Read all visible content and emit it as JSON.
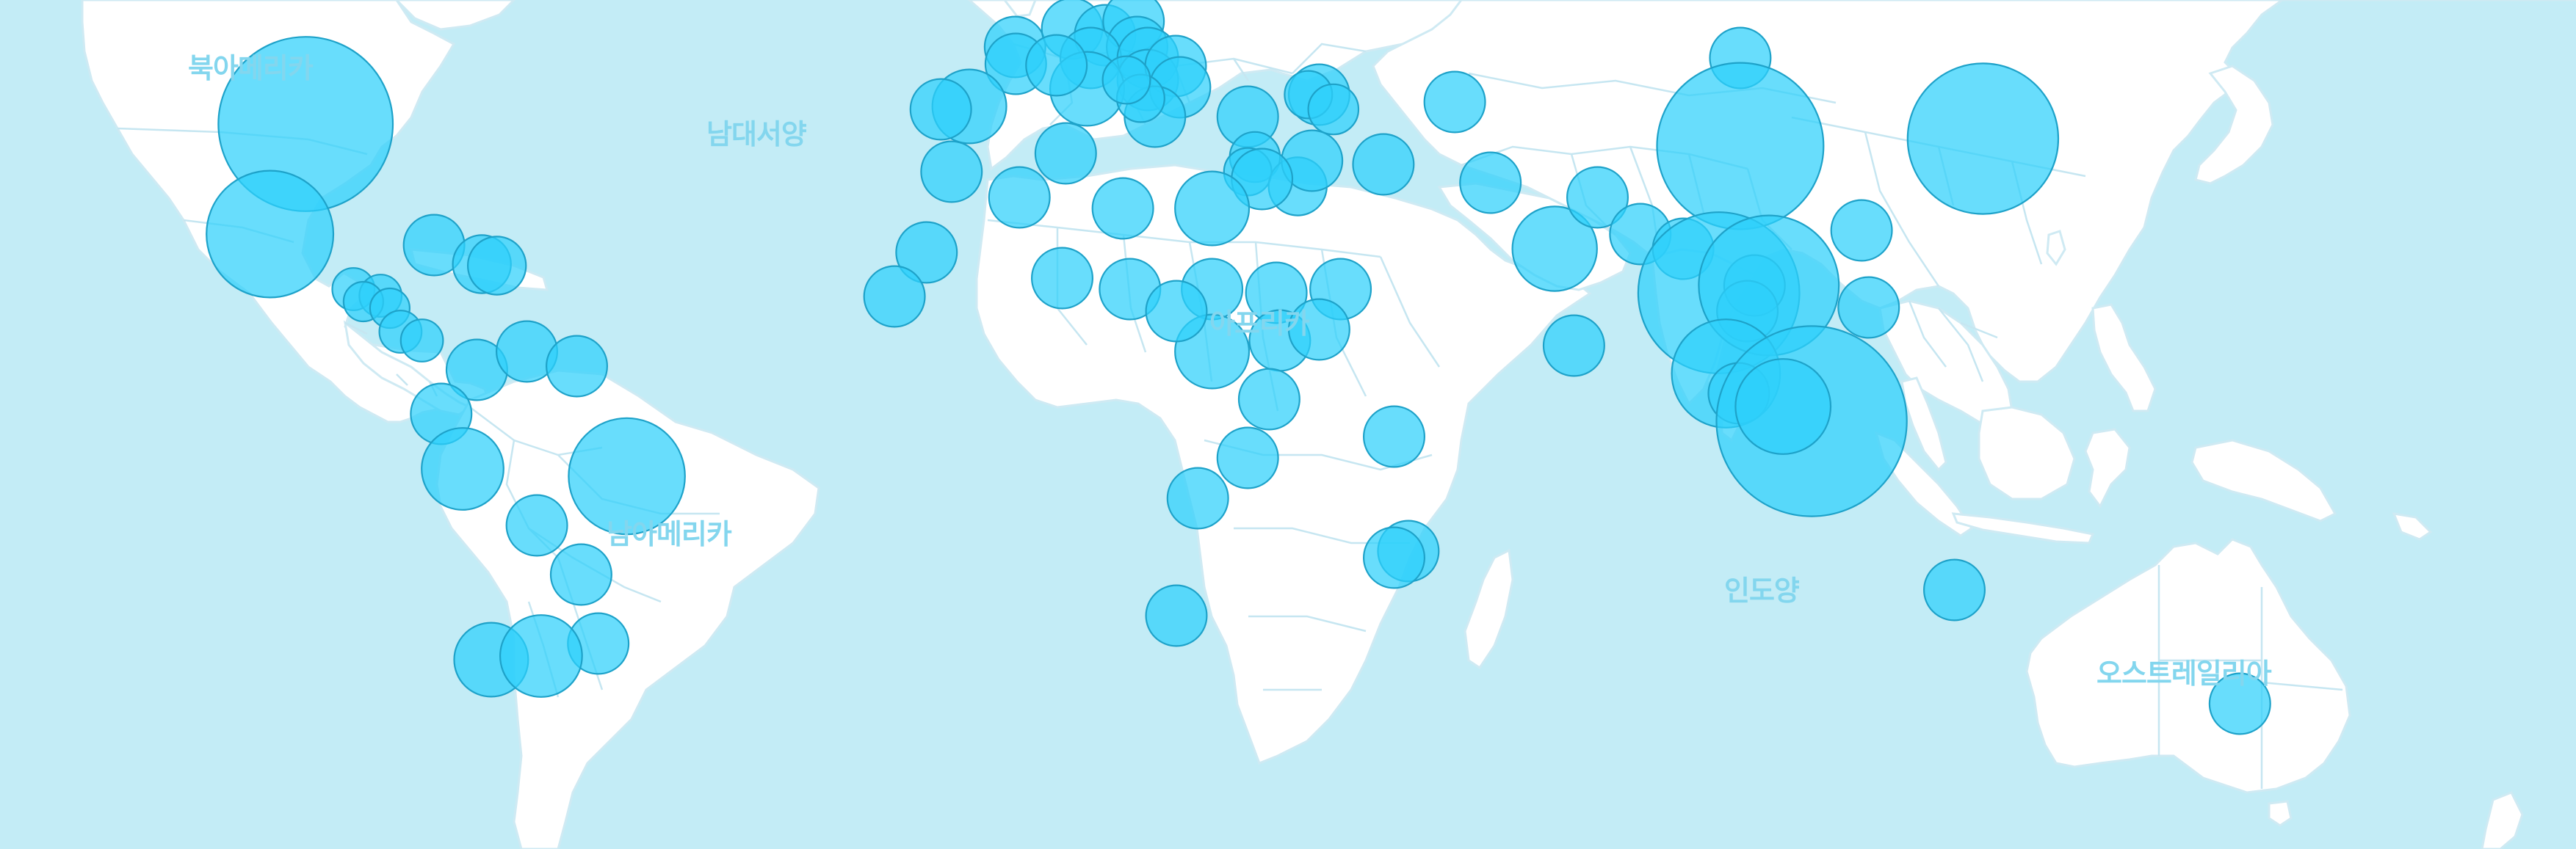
{
  "map": {
    "colors": {
      "ocean": "#c3ecf6",
      "land": "#ffffff",
      "border": "#c6e6f1",
      "bubble_fill": "#2ed0fb",
      "bubble_stroke": "#1ea2c9",
      "label": "#83d6ee"
    },
    "bubble_opacity": 0.72,
    "labels": {
      "north_america": "북아메리카",
      "north_atlantic": "남대서양",
      "africa": "아프리카",
      "south_america": "남아메리카",
      "indian_ocean": "인도양",
      "australia": "오스트레일리아"
    },
    "markers": [
      {
        "lat": 38.0,
        "lon": -97.0,
        "size": 6.6
      },
      {
        "lat": 23.0,
        "lon": -102.0,
        "size": 4.8
      },
      {
        "lat": 15.5,
        "lon": -90.3,
        "size": 1.6
      },
      {
        "lat": 14.6,
        "lon": -86.5,
        "size": 1.6
      },
      {
        "lat": 13.8,
        "lon": -88.9,
        "size": 1.5
      },
      {
        "lat": 12.9,
        "lon": -85.2,
        "size": 1.5
      },
      {
        "lat": 9.7,
        "lon": -83.7,
        "size": 1.6
      },
      {
        "lat": 8.5,
        "lon": -80.7,
        "size": 1.6
      },
      {
        "lat": 21.5,
        "lon": -79.0,
        "size": 2.3
      },
      {
        "lat": 18.9,
        "lon": -72.3,
        "size": 2.2
      },
      {
        "lat": 18.7,
        "lon": -70.2,
        "size": 2.2
      },
      {
        "lat": 4.5,
        "lon": -73.0,
        "size": 2.3
      },
      {
        "lat": 7.0,
        "lon": -66.0,
        "size": 2.3
      },
      {
        "lat": 5.0,
        "lon": -59.0,
        "size": 2.3
      },
      {
        "lat": -1.5,
        "lon": -78.0,
        "size": 2.3
      },
      {
        "lat": -9.0,
        "lon": -75.0,
        "size": 3.1
      },
      {
        "lat": -10.0,
        "lon": -52.0,
        "size": 4.4
      },
      {
        "lat": -16.7,
        "lon": -64.6,
        "size": 2.3
      },
      {
        "lat": -23.4,
        "lon": -58.4,
        "size": 2.3
      },
      {
        "lat": -32.8,
        "lon": -56.0,
        "size": 2.3
      },
      {
        "lat": -35.0,
        "lon": -71.0,
        "size": 2.8
      },
      {
        "lat": -34.5,
        "lon": -64.0,
        "size": 3.1
      },
      {
        "lat": 48.5,
        "lon": 2.4,
        "size": 2.3
      },
      {
        "lat": 46.2,
        "lon": 2.5,
        "size": 2.3
      },
      {
        "lat": 51.0,
        "lon": 10.4,
        "size": 2.3
      },
      {
        "lat": 50.1,
        "lon": 15.0,
        "size": 2.3
      },
      {
        "lat": 52.0,
        "lon": 19.0,
        "size": 2.3
      },
      {
        "lat": 48.5,
        "lon": 19.5,
        "size": 2.3
      },
      {
        "lat": 47.0,
        "lon": 13.0,
        "size": 2.3
      },
      {
        "lat": 47.0,
        "lon": 21.0,
        "size": 2.3
      },
      {
        "lat": 44.0,
        "lon": 21.0,
        "size": 2.3
      },
      {
        "lat": 45.9,
        "lon": 24.9,
        "size": 2.3
      },
      {
        "lat": 43.0,
        "lon": 25.5,
        "size": 2.3
      },
      {
        "lat": 40.4,
        "lon": -4.0,
        "size": 2.8
      },
      {
        "lat": 40.0,
        "lon": -8.0,
        "size": 2.3
      },
      {
        "lat": 42.8,
        "lon": 12.5,
        "size": 2.8
      },
      {
        "lat": 46.0,
        "lon": 8.2,
        "size": 2.3
      },
      {
        "lat": 39.0,
        "lon": 22.0,
        "size": 2.3
      },
      {
        "lat": 41.5,
        "lon": 20.0,
        "size": 1.8
      },
      {
        "lat": 44.0,
        "lon": 18.0,
        "size": 1.8
      },
      {
        "lat": 39.0,
        "lon": 35.0,
        "size": 2.3
      },
      {
        "lat": 42.0,
        "lon": 45.0,
        "size": 2.3
      },
      {
        "lat": 42.0,
        "lon": 43.5,
        "size": 1.8
      },
      {
        "lat": 40.0,
        "lon": 47.0,
        "size": 1.9
      },
      {
        "lat": 32.5,
        "lon": 54.0,
        "size": 2.3
      },
      {
        "lat": 30.0,
        "lon": 69.0,
        "size": 2.3
      },
      {
        "lat": 41.0,
        "lon": 64.0,
        "size": 2.3
      },
      {
        "lat": 33.5,
        "lon": 36.0,
        "size": 1.9
      },
      {
        "lat": 31.5,
        "lon": 35.0,
        "size": 1.8
      },
      {
        "lat": 29.5,
        "lon": 42.0,
        "size": 2.2
      },
      {
        "lat": 33.0,
        "lon": 44.0,
        "size": 2.3
      },
      {
        "lat": 30.5,
        "lon": 37.0,
        "size": 2.3
      },
      {
        "lat": 28.0,
        "lon": 3.0,
        "size": 2.3
      },
      {
        "lat": 34.0,
        "lon": 9.5,
        "size": 2.3
      },
      {
        "lat": 31.5,
        "lon": -6.5,
        "size": 2.3
      },
      {
        "lat": 20.5,
        "lon": -10.0,
        "size": 2.3
      },
      {
        "lat": 14.5,
        "lon": -14.5,
        "size": 2.3
      },
      {
        "lat": 26.5,
        "lon": 17.5,
        "size": 2.3
      },
      {
        "lat": 26.5,
        "lon": 30.0,
        "size": 2.8
      },
      {
        "lat": 15.5,
        "lon": 18.5,
        "size": 2.3
      },
      {
        "lat": 17.0,
        "lon": 9.0,
        "size": 2.3
      },
      {
        "lat": 15.5,
        "lon": 30.0,
        "size": 2.3
      },
      {
        "lat": 15.0,
        "lon": 39.0,
        "size": 2.3
      },
      {
        "lat": 15.5,
        "lon": 48.0,
        "size": 2.3
      },
      {
        "lat": 8.5,
        "lon": 39.5,
        "size": 2.3
      },
      {
        "lat": 10.0,
        "lon": 45.0,
        "size": 2.3
      },
      {
        "lat": 7.0,
        "lon": 30.0,
        "size": 2.8
      },
      {
        "lat": 12.5,
        "lon": 25.0,
        "size": 2.3
      },
      {
        "lat": 0.5,
        "lon": 38.0,
        "size": 2.3
      },
      {
        "lat": -7.5,
        "lon": 35.0,
        "size": 2.3
      },
      {
        "lat": -13.0,
        "lon": 28.0,
        "size": 2.3
      },
      {
        "lat": -29.0,
        "lon": 25.0,
        "size": 2.3
      },
      {
        "lat": -20.2,
        "lon": 57.5,
        "size": 2.3
      },
      {
        "lat": -21.1,
        "lon": 55.5,
        "size": 2.3
      },
      {
        "lat": 21.0,
        "lon": 78.0,
        "size": 3.2
      },
      {
        "lat": 28.0,
        "lon": 84.0,
        "size": 2.3
      },
      {
        "lat": 7.8,
        "lon": 80.7,
        "size": 2.3
      },
      {
        "lat": -4.6,
        "lon": 55.5,
        "size": 2.3
      },
      {
        "lat": 23.0,
        "lon": 90.0,
        "size": 2.3
      },
      {
        "lat": 21.0,
        "lon": 96.0,
        "size": 2.3
      },
      {
        "lat": 47.0,
        "lon": 104.0,
        "size": 2.3
      },
      {
        "lat": 35.0,
        "lon": 104.0,
        "size": 6.3
      },
      {
        "lat": 36.0,
        "lon": 138.0,
        "size": 5.7
      },
      {
        "lat": 13.0,
        "lon": 122.0,
        "size": 2.3
      },
      {
        "lat": 15.0,
        "lon": 101.0,
        "size": 6.1
      },
      {
        "lat": 16.0,
        "lon": 106.0,
        "size": 2.3
      },
      {
        "lat": 12.5,
        "lon": 105.0,
        "size": 2.3
      },
      {
        "lat": 16.0,
        "lon": 108.0,
        "size": 5.3
      },
      {
        "lat": 4.0,
        "lon": 102.0,
        "size": 4.1
      },
      {
        "lat": 1.3,
        "lon": 103.8,
        "size": 2.3
      },
      {
        "lat": -2.5,
        "lon": 114.0,
        "size": 7.2
      },
      {
        "lat": -0.5,
        "lon": 110.0,
        "size": 3.6
      },
      {
        "lat": 23.5,
        "lon": 121.0,
        "size": 2.3
      },
      {
        "lat": -25.5,
        "lon": 134.0,
        "size": 2.3
      },
      {
        "lat": -41.0,
        "lon": 174.0,
        "size": 2.3
      }
    ]
  }
}
